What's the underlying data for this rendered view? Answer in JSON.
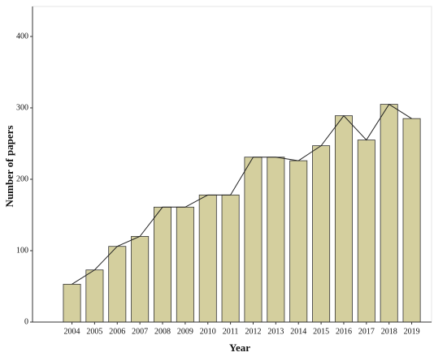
{
  "chart_data": {
    "type": "bar",
    "x_label": "Year",
    "y_label": "Number of papers",
    "categories": [
      "2004",
      "2005",
      "2006",
      "2007",
      "2008",
      "2009",
      "2010",
      "2011",
      "2012",
      "2013",
      "2014",
      "2015",
      "2016",
      "2017",
      "2018",
      "2019"
    ],
    "values": [
      53,
      73,
      106,
      120,
      161,
      161,
      178,
      178,
      231,
      231,
      226,
      247,
      289,
      255,
      305,
      285
    ],
    "color": "#d4cf9e",
    "line_overlay": true,
    "line_color": "#222222",
    "ylim": [
      0,
      442
    ],
    "yticks": [
      0,
      100,
      200,
      300,
      400
    ],
    "grid": false
  }
}
